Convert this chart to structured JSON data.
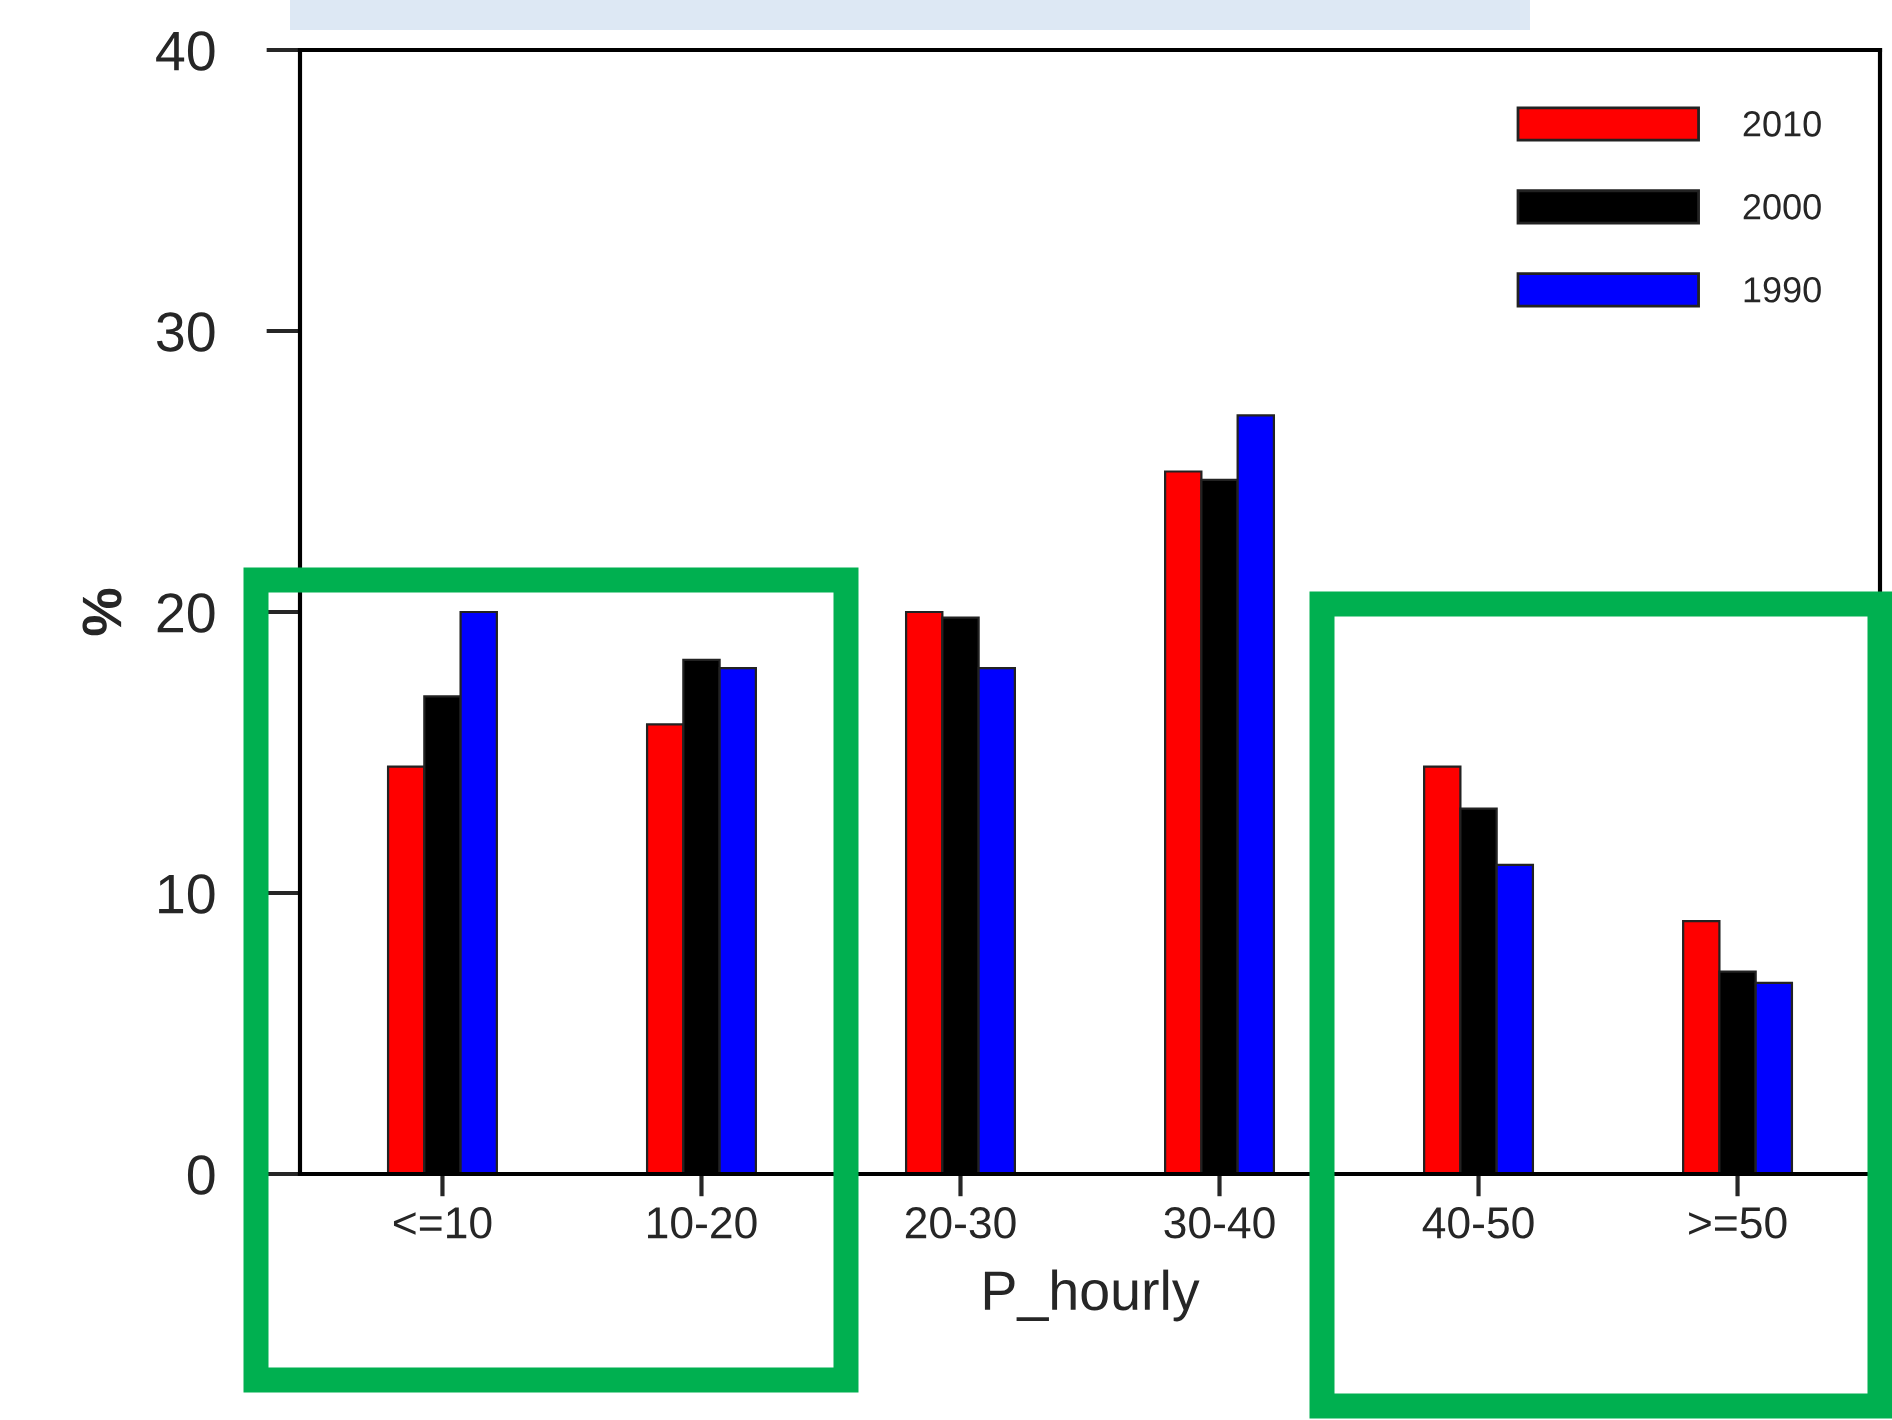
{
  "chart_data": {
    "type": "bar",
    "xlabel": "P_hourly",
    "ylabel": "%",
    "categories": [
      "<=10",
      "10-20",
      "20-30",
      "30-40",
      "40-50",
      ">=50"
    ],
    "series": [
      {
        "name": "2010",
        "color": "#ff0000",
        "values": [
          14.5,
          16,
          20,
          25,
          14.5,
          9
        ]
      },
      {
        "name": "2000",
        "color": "#000000",
        "values": [
          17,
          18.3,
          19.8,
          24.7,
          13,
          7.2
        ]
      },
      {
        "name": "1990",
        "color": "#0000ff",
        "values": [
          20,
          18,
          18,
          27,
          11,
          6.8
        ]
      }
    ],
    "ylim": [
      0,
      40
    ],
    "yticks": [
      0,
      10,
      20,
      30,
      40
    ],
    "grid": false,
    "legend": "top right"
  }
}
